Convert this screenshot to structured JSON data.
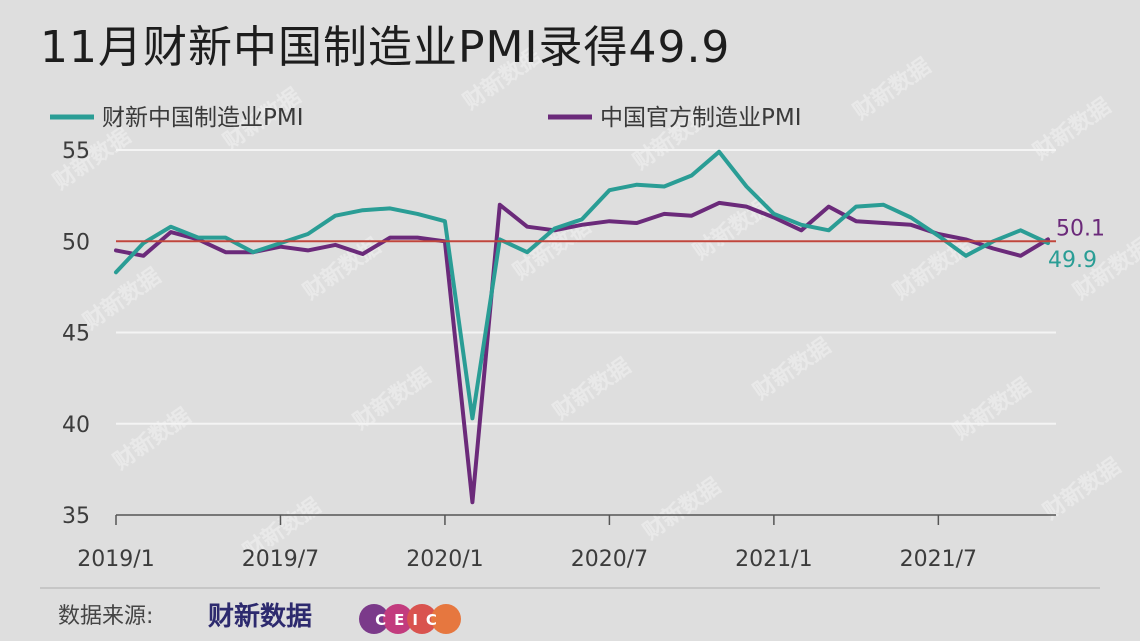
{
  "chart_data": {
    "type": "line",
    "title": "11月财新中国制造业PMI录得49.9",
    "x_tick_labels": [
      "2019/1",
      "2019/7",
      "2020/1",
      "2020/7",
      "2021/1",
      "2021/7"
    ],
    "x": [
      "2019/1",
      "2019/2",
      "2019/3",
      "2019/4",
      "2019/5",
      "2019/6",
      "2019/7",
      "2019/8",
      "2019/9",
      "2019/10",
      "2019/11",
      "2019/12",
      "2020/1",
      "2020/2",
      "2020/3",
      "2020/4",
      "2020/5",
      "2020/6",
      "2020/7",
      "2020/8",
      "2020/9",
      "2020/10",
      "2020/11",
      "2020/12",
      "2021/1",
      "2021/2",
      "2021/3",
      "2021/4",
      "2021/5",
      "2021/6",
      "2021/7",
      "2021/8",
      "2021/9",
      "2021/10",
      "2021/11"
    ],
    "ylim": [
      35,
      55
    ],
    "y_ticks": [
      35,
      40,
      45,
      50,
      55
    ],
    "reference_line": 50,
    "legend_placement": "top-left",
    "grid": true,
    "series": [
      {
        "name": "财新中国制造业PMI",
        "color": "#2a9d95",
        "end_label": "49.9",
        "values": [
          48.3,
          49.9,
          50.8,
          50.2,
          50.2,
          49.4,
          49.9,
          50.4,
          51.4,
          51.7,
          51.8,
          51.5,
          51.1,
          40.3,
          50.1,
          49.4,
          50.7,
          51.2,
          52.8,
          53.1,
          53.0,
          53.6,
          54.9,
          53.0,
          51.5,
          50.9,
          50.6,
          51.9,
          52.0,
          51.3,
          50.3,
          49.2,
          50.0,
          50.6,
          49.9
        ]
      },
      {
        "name": "中国官方制造业PMI",
        "color": "#6b2a7a",
        "end_label": "50.1",
        "values": [
          49.5,
          49.2,
          50.5,
          50.1,
          49.4,
          49.4,
          49.7,
          49.5,
          49.8,
          49.3,
          50.2,
          50.2,
          50.0,
          35.7,
          52.0,
          50.8,
          50.6,
          50.9,
          51.1,
          51.0,
          51.5,
          51.4,
          52.1,
          51.9,
          51.3,
          50.6,
          51.9,
          51.1,
          51.0,
          50.9,
          50.4,
          50.1,
          49.6,
          49.2,
          50.1
        ]
      }
    ]
  },
  "source": {
    "label": "数据来源:",
    "logo_caixin": "财新数据",
    "logo_ceic": "CEIC"
  },
  "watermark_text": "财新数据",
  "colors": {
    "background": "#dedede",
    "grid": "#f4f4f4",
    "reference_line": "#c0463c",
    "axis": "#555555"
  }
}
